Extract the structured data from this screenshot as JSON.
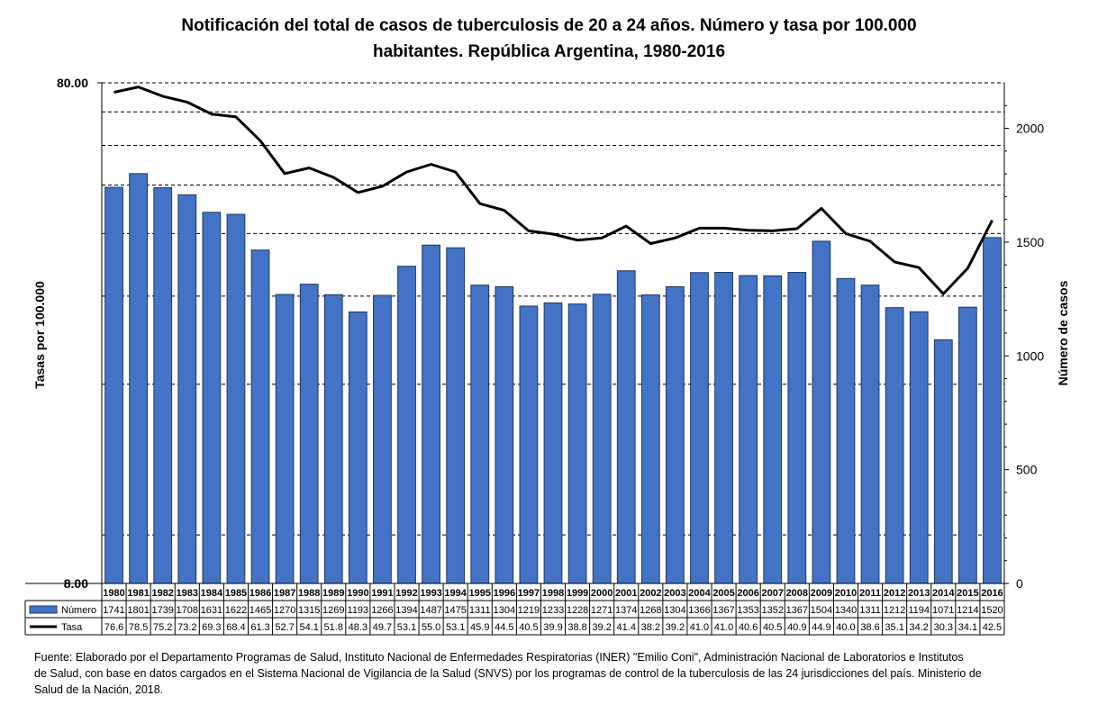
{
  "title_line1": "Notificación del total de casos de tuberculosis de 20 a 24 años. Número y tasa por 100.000",
  "title_line2": "habitantes. República Argentina, 1980-2016",
  "footnote_line1": "Fuente: Elaborado por el Departamento Programas de Salud, Instituto Nacional de Enfermedades Respiratorias (INER) \"Emilio Coni\", Administración Nacional de Laboratorios e Institutos",
  "footnote_line2": "de Salud, con base en datos cargados  en el Sistema Nacional de Vigilancia de la Salud (SNVS) por los programas de control de la tuberculosis de las 24  jurisdicciones del país. Ministerio de",
  "footnote_line3": "Salud de la Nación, 2018.",
  "chart_data": {
    "type": "bar+line",
    "categories": [
      "1980",
      "1981",
      "1982",
      "1983",
      "1984",
      "1985",
      "1986",
      "1987",
      "1988",
      "1989",
      "1990",
      "1991",
      "1992",
      "1993",
      "1994",
      "1995",
      "1996",
      "1997",
      "1998",
      "1999",
      "2000",
      "2001",
      "2002",
      "2003",
      "2004",
      "2005",
      "2006",
      "2007",
      "2008",
      "2009",
      "2010",
      "2011",
      "2012",
      "2013",
      "2014",
      "2015",
      "2016"
    ],
    "series": [
      {
        "name": "Número",
        "type": "bar",
        "axis": "right",
        "color": "#4472C4",
        "values": [
          1741,
          1801,
          1739,
          1708,
          1631,
          1622,
          1465,
          1270,
          1315,
          1269,
          1193,
          1266,
          1394,
          1487,
          1475,
          1311,
          1304,
          1219,
          1233,
          1228,
          1271,
          1374,
          1268,
          1304,
          1366,
          1367,
          1353,
          1352,
          1367,
          1504,
          1340,
          1311,
          1212,
          1194,
          1071,
          1214,
          1520
        ],
        "labels": [
          "1741",
          "1801",
          "1739",
          "1708",
          "1631",
          "1622",
          "1465",
          "1270",
          "1315",
          "1269",
          "1193",
          "1266",
          "1394",
          "1487",
          "1475",
          "1311",
          "1304",
          "1219",
          "1233",
          "1228",
          "1271",
          "1374",
          "1268",
          "1304",
          "1366",
          "1367",
          "1353",
          "1352",
          "1367",
          "1504",
          "1340",
          "1311",
          "1212",
          "1194",
          "1071",
          "1214",
          "1520"
        ]
      },
      {
        "name": "Tasa",
        "type": "line",
        "axis": "left",
        "scale": "log",
        "color": "#000000",
        "values": [
          76.6,
          78.5,
          75.2,
          73.2,
          69.3,
          68.4,
          61.3,
          52.7,
          54.1,
          51.8,
          48.3,
          49.7,
          53.1,
          55.0,
          53.1,
          45.9,
          44.5,
          40.5,
          39.9,
          38.8,
          39.2,
          41.4,
          38.2,
          39.2,
          41.0,
          41.0,
          40.6,
          40.5,
          40.9,
          44.9,
          40.0,
          38.6,
          35.1,
          34.2,
          30.3,
          34.1,
          42.5
        ],
        "labels": [
          "76.6",
          "78.5",
          "75.2",
          "73.2",
          "69.3",
          "68.4",
          "61.3",
          "52.7",
          "54.1",
          "51.8",
          "48.3",
          "49.7",
          "53.1",
          "55.0",
          "53.1",
          "45.9",
          "44.5",
          "40.5",
          "39.9",
          "38.8",
          "39.2",
          "41.4",
          "38.2",
          "39.2",
          "41.0",
          "41.0",
          "40.6",
          "40.5",
          "40.9",
          "44.9",
          "40.0",
          "38.6",
          "35.1",
          "34.2",
          "30.3",
          "34.1",
          "42.5"
        ]
      }
    ],
    "y_left": {
      "label": "Tasas por 100.000",
      "scale": "log",
      "range": [
        8,
        80
      ],
      "ticks": [
        "80.00",
        "8.00"
      ]
    },
    "y_right": {
      "label": "Número de casos",
      "range": [
        0,
        2200
      ],
      "ticks": [
        "0",
        "500",
        "1000",
        "1500",
        "2000"
      ],
      "tick_values": [
        0,
        500,
        1000,
        1500,
        2000
      ]
    },
    "gridlines_left": [
      10,
      20,
      30,
      40,
      50,
      60,
      70,
      80
    ],
    "legend": "data-table",
    "legend_names": [
      "Número",
      "Tasa"
    ]
  }
}
